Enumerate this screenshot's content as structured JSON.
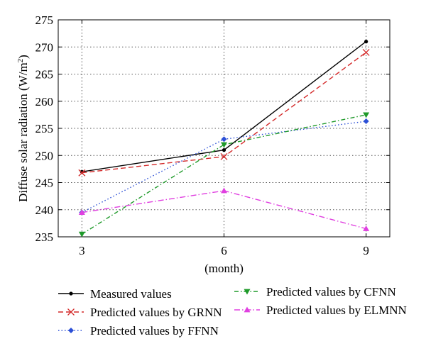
{
  "chart_data": {
    "type": "line",
    "xlabel": "(month)",
    "ylabel_main": "Diffuse solar radiation (W/m",
    "ylabel_sup": "2",
    "ylabel_tail": ")",
    "x": [
      3,
      6,
      9
    ],
    "x_ticks": [
      "3",
      "6",
      "9"
    ],
    "y_ticks": [
      "235",
      "240",
      "245",
      "250",
      "255",
      "260",
      "265",
      "270",
      "275"
    ],
    "xlim": [
      2.5,
      9.5
    ],
    "ylim": [
      235,
      275
    ],
    "grid": true,
    "legend_position": "bottom",
    "series": [
      {
        "name": "Measured values",
        "values": [
          247.0,
          251.0,
          271.0
        ],
        "color": "#000000",
        "dash": "",
        "marker": "dot"
      },
      {
        "name": "Predicted values by GRNN",
        "values": [
          246.8,
          249.8,
          269.0
        ],
        "color": "#d42a2a",
        "dash": "7,4",
        "marker": "x"
      },
      {
        "name": "Predicted values by FFNN",
        "values": [
          239.5,
          253.0,
          256.3
        ],
        "color": "#2b4fd6",
        "dash": "1.5,3",
        "marker": "diamond"
      },
      {
        "name": "Predicted values by CFNN",
        "values": [
          235.5,
          252.0,
          257.5
        ],
        "color": "#1f9a2a",
        "dash": "6,3,1.5,3",
        "marker": "tri-down"
      },
      {
        "name": "Predicted values by ELMNN",
        "values": [
          239.5,
          243.5,
          236.5
        ],
        "color": "#e040e0",
        "dash": "8,3,1.5,3",
        "marker": "tri-up"
      }
    ]
  }
}
